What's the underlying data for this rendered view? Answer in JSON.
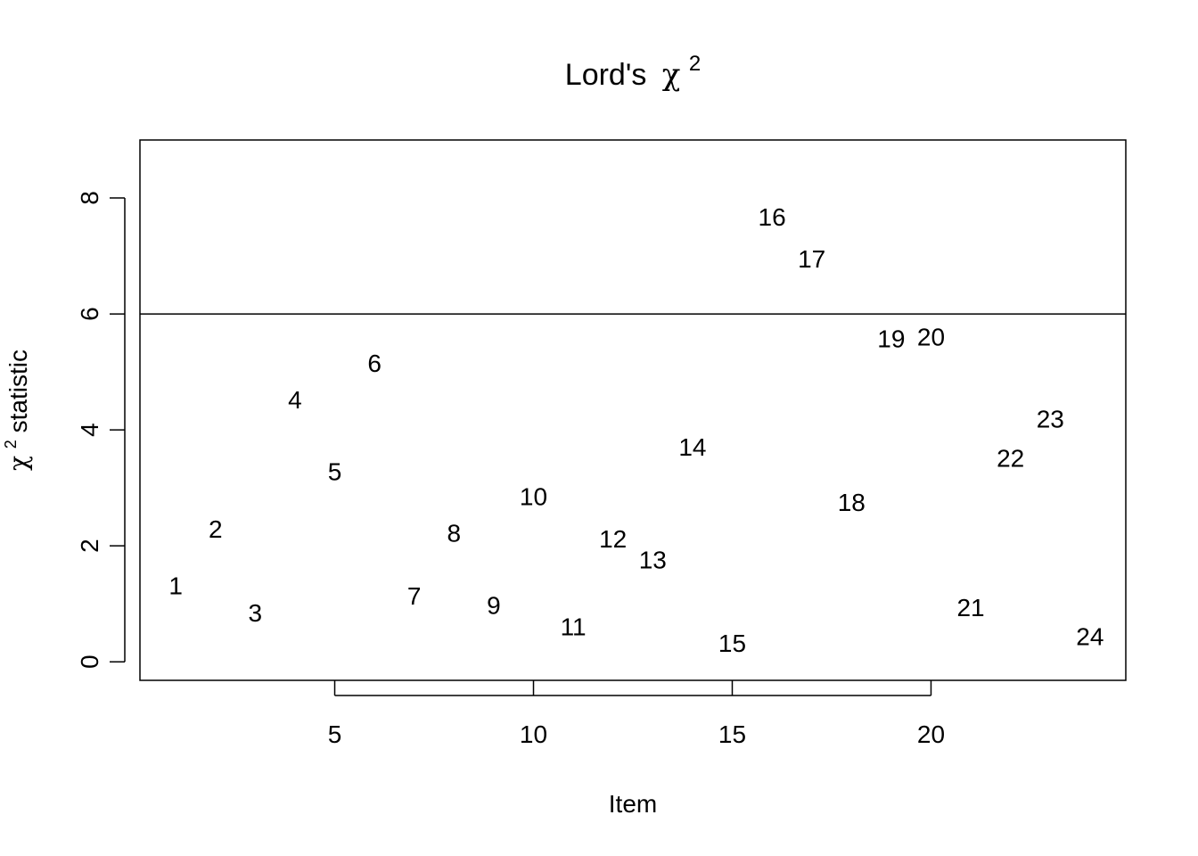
{
  "chart_data": {
    "type": "scatter",
    "title": "Lord's",
    "title_symbol": "χ",
    "title_superscript": "2",
    "xlabel": "Item",
    "ylabel_symbol": "χ",
    "ylabel_superscript": "2",
    "ylabel_text": " statistic",
    "xlim": [
      0.1,
      24.9
    ],
    "ylim": [
      -0.32,
      9.0
    ],
    "x_ticks": [
      5,
      10,
      15,
      20
    ],
    "y_ticks": [
      0,
      2,
      4,
      6,
      8
    ],
    "threshold": 6,
    "point_marker": "item number",
    "colors": {
      "default": "#000000",
      "flagged": "#e00000"
    },
    "points": [
      {
        "x": 1,
        "y": 1.31,
        "label": "1",
        "flagged": false
      },
      {
        "x": 2,
        "y": 2.29,
        "label": "2",
        "flagged": false
      },
      {
        "x": 3,
        "y": 0.84,
        "label": "3",
        "flagged": false
      },
      {
        "x": 4,
        "y": 4.52,
        "label": "4",
        "flagged": false
      },
      {
        "x": 5,
        "y": 3.28,
        "label": "5",
        "flagged": false
      },
      {
        "x": 6,
        "y": 5.15,
        "label": "6",
        "flagged": false
      },
      {
        "x": 7,
        "y": 1.13,
        "label": "7",
        "flagged": false
      },
      {
        "x": 8,
        "y": 2.22,
        "label": "8",
        "flagged": false
      },
      {
        "x": 9,
        "y": 0.97,
        "label": "9",
        "flagged": false
      },
      {
        "x": 10,
        "y": 2.85,
        "label": "10",
        "flagged": false
      },
      {
        "x": 11,
        "y": 0.6,
        "label": "11",
        "flagged": false
      },
      {
        "x": 12,
        "y": 2.12,
        "label": "12",
        "flagged": false
      },
      {
        "x": 13,
        "y": 1.76,
        "label": "13",
        "flagged": false
      },
      {
        "x": 14,
        "y": 3.7,
        "label": "14",
        "flagged": false
      },
      {
        "x": 15,
        "y": 0.32,
        "label": "15",
        "flagged": false
      },
      {
        "x": 16,
        "y": 7.67,
        "label": "16",
        "flagged": true
      },
      {
        "x": 17,
        "y": 6.95,
        "label": "17",
        "flagged": true
      },
      {
        "x": 18,
        "y": 2.75,
        "label": "18",
        "flagged": false
      },
      {
        "x": 19,
        "y": 5.57,
        "label": "19",
        "flagged": false
      },
      {
        "x": 20,
        "y": 5.6,
        "label": "20",
        "flagged": false
      },
      {
        "x": 21,
        "y": 0.93,
        "label": "21",
        "flagged": false
      },
      {
        "x": 22,
        "y": 3.51,
        "label": "22",
        "flagged": false
      },
      {
        "x": 23,
        "y": 4.19,
        "label": "23",
        "flagged": false
      },
      {
        "x": 24,
        "y": 0.43,
        "label": "24",
        "flagged": false
      }
    ]
  }
}
